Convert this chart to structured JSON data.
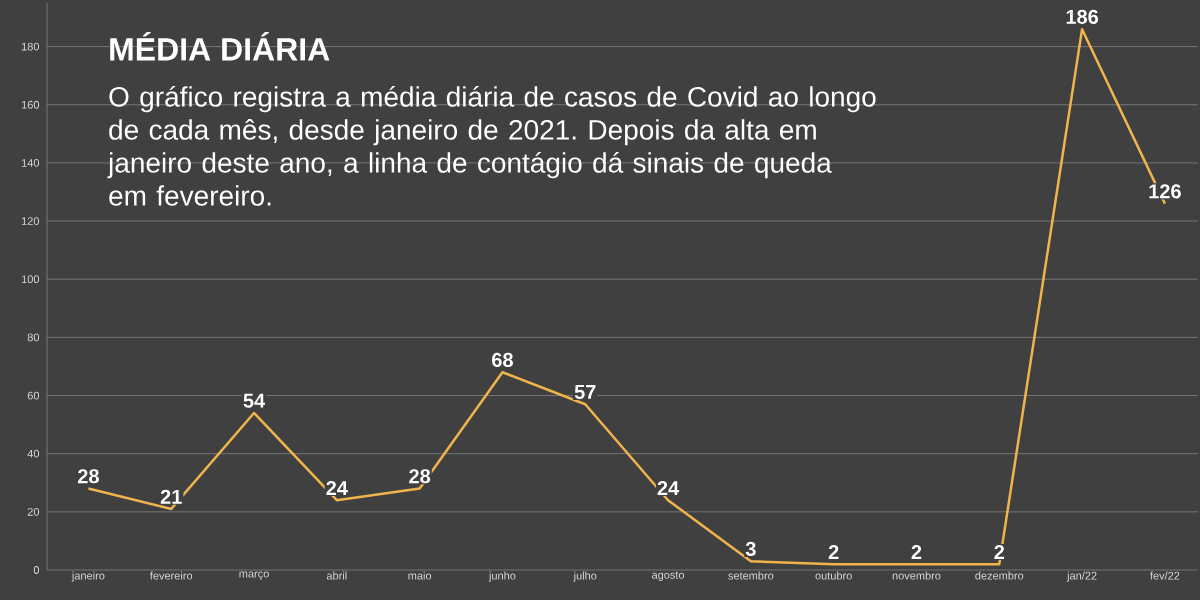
{
  "chart_data": {
    "type": "line",
    "title": "MÉDIA DIÁRIA",
    "subtitle": "O gráfico registra a média diária de casos de Covid ao longo de cada mês, desde janeiro de 2021. Depois da alta em janeiro deste ano, a linha de contágio dá sinais de queda em fevereiro.",
    "categories": [
      "janeiro",
      "fevereiro",
      "março",
      "abril",
      "maio",
      "junho",
      "julho",
      "agosto",
      "setembro",
      "outubro",
      "novembro",
      "dezembro",
      "jan/22",
      "fev/22"
    ],
    "values": [
      28,
      21,
      54,
      24,
      28,
      68,
      57,
      24,
      3,
      2,
      2,
      2,
      186,
      126
    ],
    "color": "#f0b44c",
    "ylim": [
      0,
      195
    ],
    "yticks": [
      0,
      20,
      40,
      60,
      80,
      100,
      120,
      140,
      160,
      180
    ],
    "grid": "y",
    "data_labels": true,
    "marker": "none",
    "line_style": "solid"
  }
}
